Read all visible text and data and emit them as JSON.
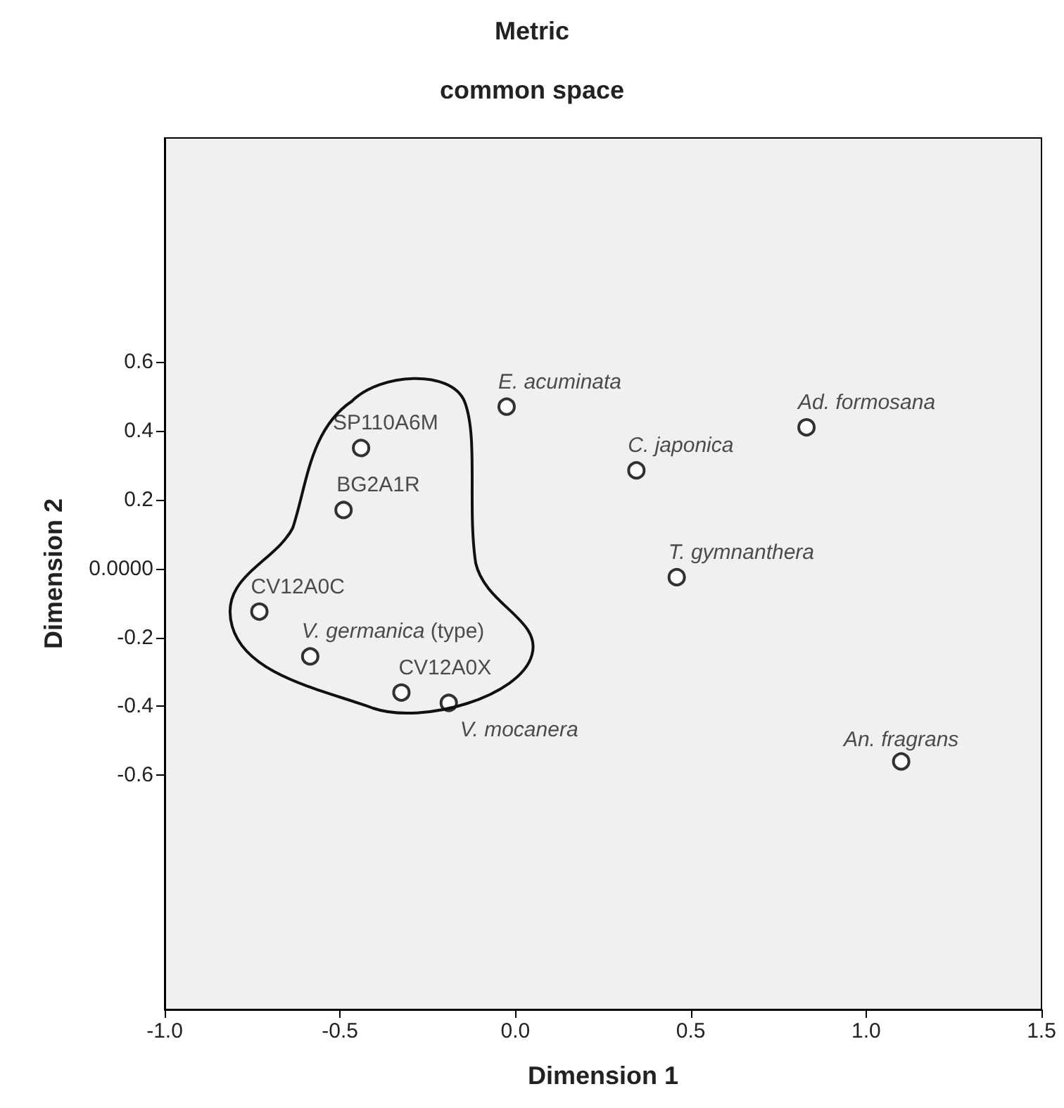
{
  "chart_data": {
    "type": "scatter",
    "title": "Metric",
    "subtitle": "common space",
    "xlabel": "Dimension 1",
    "ylabel": "Dimension 2",
    "x": [
      -0.025,
      0.83,
      0.345,
      -0.44,
      -0.49,
      0.46,
      -0.73,
      -0.585,
      -0.325,
      -0.19,
      1.1
    ],
    "series": [
      {
        "color": "#000000",
        "values": [
          0.47,
          0.41,
          0.285,
          0.35,
          0.17,
          -0.025,
          -0.125,
          -0.255,
          -0.36,
          -0.39,
          -0.56
        ]
      }
    ],
    "annotations": [
      {
        "text": "E. acuminata",
        "x": -0.025,
        "y": 0.47
      },
      {
        "text": "Ad. formosana",
        "x": 0.83,
        "y": 0.41
      },
      {
        "text": "C. japonica",
        "x": 0.345,
        "y": 0.285
      },
      {
        "text": "SP110A6M",
        "x": -0.44,
        "y": 0.35
      },
      {
        "text": "BG2A1R",
        "x": -0.49,
        "y": 0.17
      },
      {
        "text": "T. gymnanthera",
        "x": 0.46,
        "y": -0.025
      },
      {
        "text": "CV12A0C",
        "x": -0.73,
        "y": -0.125
      },
      {
        "text": "V. germanica (type)",
        "x": -0.585,
        "y": -0.255
      },
      {
        "text": "CV12A0X",
        "x": -0.325,
        "y": -0.36
      },
      {
        "text": "V. mocanera",
        "x": -0.19,
        "y": -0.39
      },
      {
        "text": "An. fragrans",
        "x": 1.1,
        "y": -0.56
      }
    ],
    "xlim": [
      -1.0,
      1.5
    ],
    "xticks": [
      {
        "value": -1,
        "label": "-1.0"
      },
      {
        "value": -0.5,
        "label": "-0.5"
      },
      {
        "value": 0,
        "label": "0.0"
      },
      {
        "value": 0.5,
        "label": "0.5"
      },
      {
        "value": 1,
        "label": "1.0"
      },
      {
        "value": 1.5,
        "label": "1.5"
      }
    ],
    "ylim": [
      -1.28,
      1.25
    ],
    "yticks": [
      0.6,
      0.4,
      0.2,
      {
        "value": 0,
        "label": "0.0000"
      },
      -0.2,
      -0.4,
      -0.6
    ],
    "grid": false,
    "marker": "circle"
  }
}
